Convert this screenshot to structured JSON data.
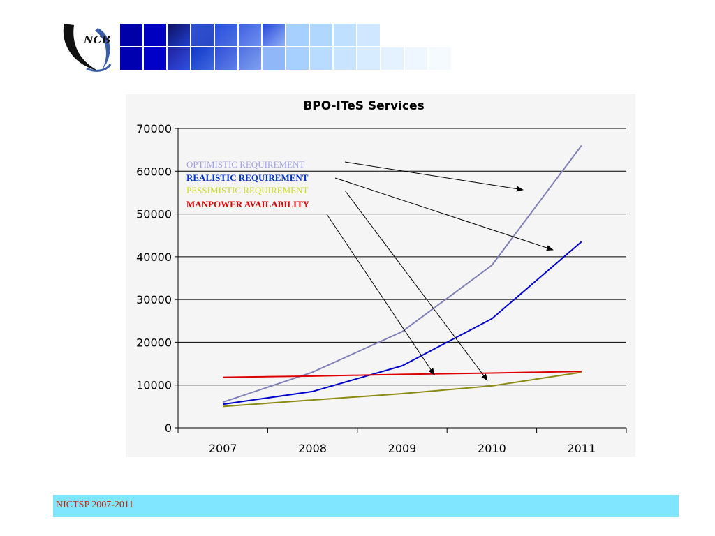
{
  "logo": {
    "text": "NCB"
  },
  "chart_data": {
    "type": "line",
    "title": "BPO-ITeS Services",
    "xlabel": "",
    "ylabel": "",
    "categories": [
      "2007",
      "2008",
      "2009",
      "2010",
      "2011"
    ],
    "ylim": [
      0,
      70000
    ],
    "yticks": [
      "0",
      "10000",
      "20000",
      "30000",
      "40000",
      "50000",
      "60000",
      "70000"
    ],
    "grid": true,
    "legend_placement": "top-left",
    "series": [
      {
        "name": "OPTIMISTIC REQUIREMENT",
        "color": "#8080b8",
        "values": [
          6000,
          13000,
          22500,
          38000,
          66000
        ]
      },
      {
        "name": "REALISTIC REQUIREMENT",
        "color": "#0000cc",
        "values": [
          5500,
          8500,
          14500,
          25500,
          43500
        ]
      },
      {
        "name": "PESSIMISTIC REQUIREMENT",
        "color": "#8a8a10",
        "values": [
          5000,
          6500,
          8000,
          9800,
          13000
        ]
      },
      {
        "name": "MANPOWER AVAILABILITY",
        "color": "#dd0000",
        "values": [
          11800,
          12100,
          12500,
          12800,
          13200
        ]
      }
    ],
    "legend_colors": [
      "#a0a0e8",
      "#0033cc",
      "#ccdd22",
      "#dd0000"
    ]
  },
  "footer": {
    "text": "NICTSP 2007-2011"
  }
}
